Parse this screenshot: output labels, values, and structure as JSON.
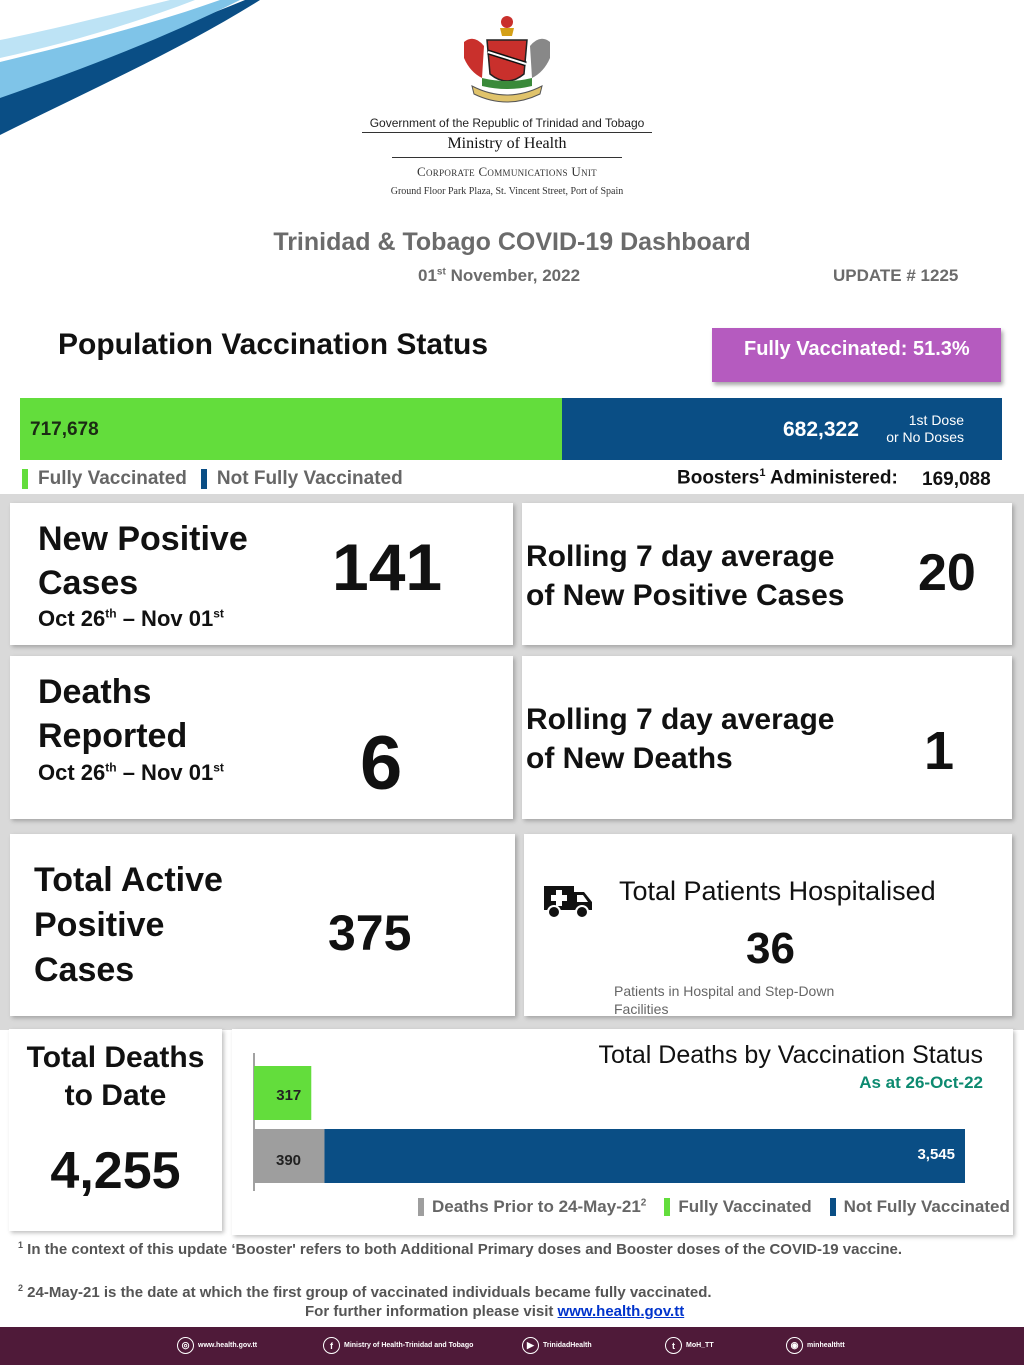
{
  "header": {
    "gov_line": "Government of the Republic of Trinidad and Tobago",
    "ministry": "Ministry of Health",
    "unit": "Corporate Communications Unit",
    "address": "Ground Floor Park Plaza, St. Vincent Street, Port of Spain"
  },
  "dashboard": {
    "title": "Trinidad & Tobago COVID-19 Dashboard",
    "date_day": "01",
    "date_sup": "st",
    "date_rest": "November, 2022",
    "update": "UPDATE # 1225"
  },
  "vaccination": {
    "title": "Population Vaccination Status",
    "fully_label": "Fully Vaccinated:",
    "fully_pct": "51.3%",
    "fully_count": "717,678",
    "not_fully_count": "682,322",
    "not_fully_sub1": "1st Dose",
    "not_fully_sub2": "or No Doses",
    "legend_fully": "Fully Vaccinated",
    "legend_not_fully": "Not Fully Vaccinated",
    "boosters_label": "Boosters",
    "boosters_sup": "1",
    "boosters_label2": " Administered:",
    "boosters_value": "169,088",
    "fully_share": 0.513
  },
  "cards": {
    "new_cases": {
      "line1": "New Positive",
      "line2": "Cases",
      "range_a": "Oct 26",
      "range_a_sup": "th",
      "range_b": " – Nov 01",
      "range_b_sup": "st",
      "value": "141"
    },
    "rolling_cases": {
      "line1": "Rolling 7 day average",
      "line2": "of New Positive Cases",
      "value": "20"
    },
    "deaths": {
      "line1": "Deaths",
      "line2": "Reported",
      "range_a": "Oct 26",
      "range_a_sup": "th",
      "range_b": " – Nov 01",
      "range_b_sup": "st",
      "value": "6"
    },
    "rolling_deaths": {
      "line1": "Rolling 7 day average",
      "line2": "of New Deaths",
      "value": "1"
    },
    "active": {
      "line1": "Total Active",
      "line2": "Positive",
      "line3": "Cases",
      "value": "375"
    },
    "hospital": {
      "title": "Total Patients Hospitalised",
      "value": "36",
      "sub": "Patients in Hospital and Step-Down Facilities"
    },
    "total_deaths": {
      "line1": "Total Deaths",
      "line2": "to Date",
      "value": "4,255"
    }
  },
  "chart_data": {
    "type": "bar",
    "title": "Total Deaths by Vaccination Status",
    "subtitle": "As at 26-Oct-22",
    "orientation": "horizontal-stacked",
    "rows": [
      {
        "segments": [
          {
            "series": "Fully Vaccinated",
            "value": 317,
            "label": "317"
          }
        ]
      },
      {
        "segments": [
          {
            "series": "Deaths Prior to 24-May-21",
            "value": 390,
            "label": "390"
          },
          {
            "series": "Not Fully Vaccinated",
            "value": 3545,
            "label": "3,545"
          }
        ]
      }
    ],
    "series": [
      {
        "name": "Deaths Prior to 24-May-21",
        "color": "#9e9e9e"
      },
      {
        "name": "Fully Vaccinated",
        "color": "#63dd3c"
      },
      {
        "name": "Not Fully Vaccinated",
        "color": "#0a4e85"
      }
    ],
    "legend": {
      "prior": "Deaths Prior to 24-May-21",
      "prior_sup": "2",
      "fully": "Fully Vaccinated",
      "not_fully": "Not Fully Vaccinated"
    },
    "xlim": [
      0,
      3935
    ]
  },
  "footnotes": {
    "n1_sup": "1",
    "n1": " In the context of this update ‘Booster' refers to both Additional Primary doses and Booster doses of the COVID-19 vaccine.",
    "n2_sup": "2",
    "n2": " 24-May-21 is the date at which the first group of vaccinated individuals became fully vaccinated.",
    "n3": "For further information please visit ",
    "n3_link": "www.health.gov.tt"
  },
  "footer": {
    "website": "www.health.gov.tt",
    "facebook": "Ministry of Health-Trinidad and Tobago",
    "youtube": "TrinidadHealth",
    "twitter": "MoH_TT",
    "instagram": "minhealthtt"
  },
  "colors": {
    "green": "#63dd3c",
    "blue": "#0a4e85",
    "gray": "#9e9e9e",
    "purple": "#b55bbf",
    "footer": "#4f1a39"
  }
}
